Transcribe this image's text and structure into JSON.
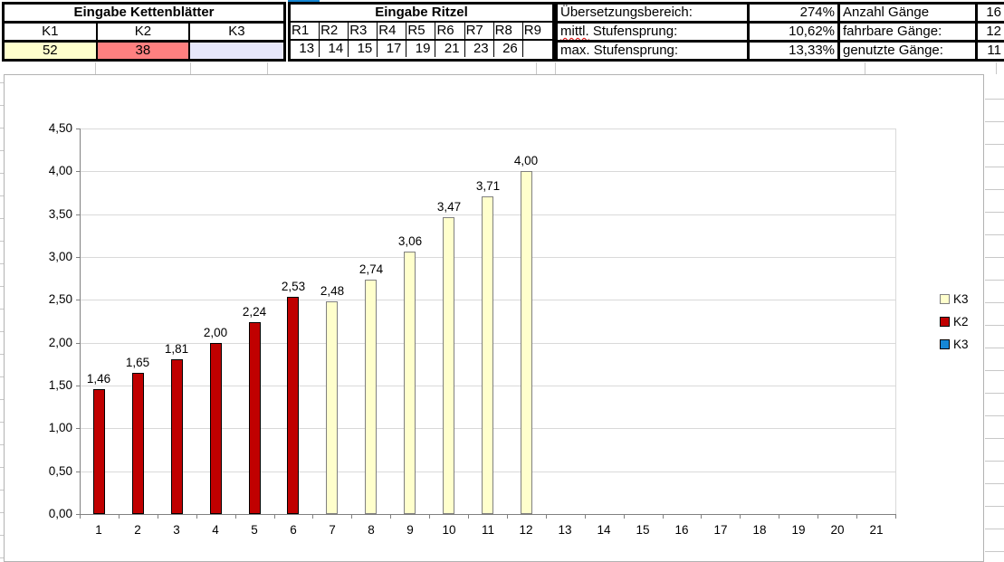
{
  "kettenblaetter": {
    "title": "Eingabe Kettenblätter",
    "headers": [
      "K1",
      "K2",
      "K3"
    ],
    "values": [
      "52",
      "38",
      ""
    ],
    "cell_colors": [
      "#ffffcc",
      "#ff8080",
      "#e6e6fa"
    ]
  },
  "ritzel": {
    "title": "Eingabe Ritzel",
    "headers": [
      "R1",
      "R2",
      "R3",
      "R4",
      "R5",
      "R6",
      "R7",
      "R8",
      "R9"
    ],
    "values": [
      "13",
      "14",
      "15",
      "17",
      "19",
      "21",
      "23",
      "26",
      ""
    ]
  },
  "stats": {
    "rows": [
      {
        "label": "Übersetzungsbereich:",
        "value": "274%",
        "label2": "Anzahl Gänge",
        "value2": "16"
      },
      {
        "label": "mittl. Stufensprung:",
        "value": "10,62%",
        "label2": "fahrbare Gänge:",
        "value2": "12"
      },
      {
        "label": "max. Stufensprung:",
        "value": "13,33%",
        "label2": "genutzte Gänge:",
        "value2": "11"
      }
    ],
    "misspelled_words": [
      "mittl."
    ]
  },
  "selection": {
    "color": "#1587d5"
  },
  "chart_data": {
    "type": "bar",
    "title": "",
    "categories": [
      1,
      2,
      3,
      4,
      5,
      6,
      7,
      8,
      9,
      10,
      11,
      12,
      13,
      14,
      15,
      16,
      17,
      18,
      19,
      20,
      21
    ],
    "bars": [
      {
        "category": 1,
        "value": 1.46,
        "label": "1,46",
        "series": "K2"
      },
      {
        "category": 2,
        "value": 1.65,
        "label": "1,65",
        "series": "K2"
      },
      {
        "category": 3,
        "value": 1.81,
        "label": "1,81",
        "series": "K2"
      },
      {
        "category": 4,
        "value": 2.0,
        "label": "2,00",
        "series": "K2"
      },
      {
        "category": 5,
        "value": 2.24,
        "label": "2,24",
        "series": "K2"
      },
      {
        "category": 6,
        "value": 2.53,
        "label": "2,53",
        "series": "K2"
      },
      {
        "category": 7,
        "value": 2.48,
        "label": "2,48",
        "series": "K3"
      },
      {
        "category": 8,
        "value": 2.74,
        "label": "2,74",
        "series": "K3"
      },
      {
        "category": 9,
        "value": 3.06,
        "label": "3,06",
        "series": "K3"
      },
      {
        "category": 10,
        "value": 3.47,
        "label": "3,47",
        "series": "K3"
      },
      {
        "category": 11,
        "value": 3.71,
        "label": "3,71",
        "series": "K3"
      },
      {
        "category": 12,
        "value": 4.0,
        "label": "4,00",
        "series": "K3"
      }
    ],
    "series_colors": {
      "K2": {
        "fill": "#c00000",
        "border": "#000000"
      },
      "K3": {
        "fill": "#ffffcc",
        "border": "#808080"
      }
    },
    "ylim": [
      0,
      4.5
    ],
    "ytick_step": 0.5,
    "yticks": [
      "0,00",
      "0,50",
      "1,00",
      "1,50",
      "2,00",
      "2,50",
      "3,00",
      "3,50",
      "4,00",
      "4,50"
    ],
    "grid": true,
    "legend": {
      "position": "right",
      "items": [
        {
          "label": "K3",
          "color": "#ffffcc",
          "border": "#808080"
        },
        {
          "label": "K2",
          "color": "#c00000",
          "border": "#000000"
        },
        {
          "label": "K3",
          "color": "#1587d5",
          "border": "#000000"
        }
      ]
    }
  }
}
